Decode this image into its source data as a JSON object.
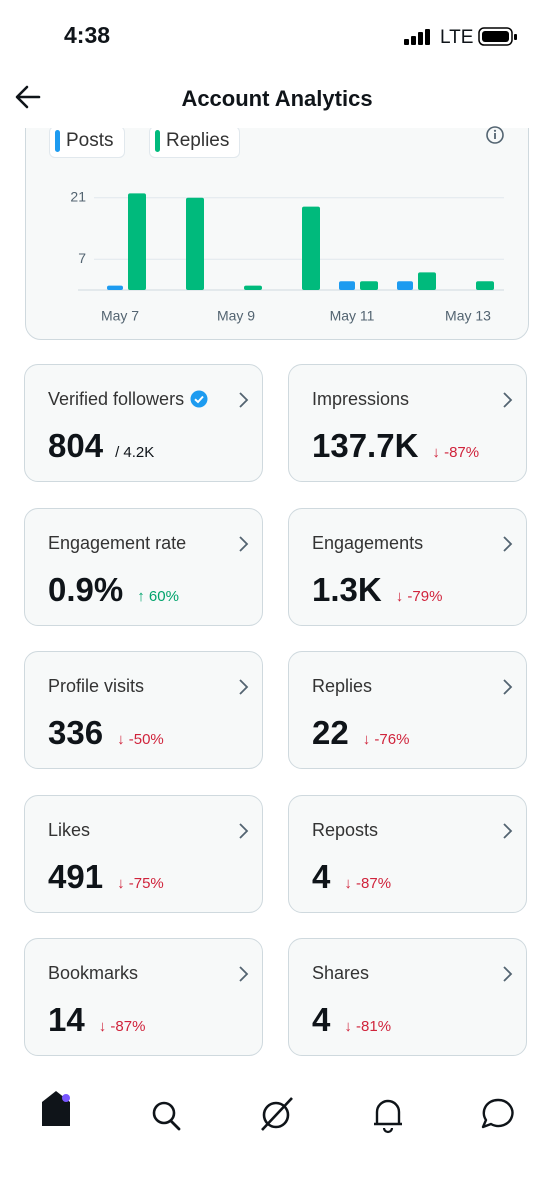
{
  "status_bar": {
    "time": "4:38",
    "network": "LTE"
  },
  "header": {
    "title": "Account Analytics"
  },
  "chart_data": {
    "type": "bar",
    "categories": [
      "May 7",
      null,
      "May 9",
      null,
      "May 11",
      null,
      "May 13"
    ],
    "series": [
      {
        "name": "Posts",
        "color": "#1d9bf0",
        "values": [
          1,
          0,
          0,
          0,
          2,
          2,
          0
        ]
      },
      {
        "name": "Replies",
        "color": "#00ba7c",
        "values": [
          22,
          21,
          1,
          19,
          2,
          4,
          2
        ]
      }
    ],
    "ylim": [
      0,
      23
    ],
    "yticks": [
      7,
      21
    ],
    "grid": true
  },
  "metrics": [
    {
      "label": "Verified followers",
      "value": "804",
      "total": "/ 4.2K",
      "verified": true
    },
    {
      "label": "Impressions",
      "value": "137.7K",
      "change": "↓ -87%",
      "trend": "down"
    },
    {
      "label": "Engagement rate",
      "value": "0.9%",
      "change": "↑ 60%",
      "trend": "up"
    },
    {
      "label": "Engagements",
      "value": "1.3K",
      "change": "↓ -79%",
      "trend": "down"
    },
    {
      "label": "Profile visits",
      "value": "336",
      "change": "↓ -50%",
      "trend": "down"
    },
    {
      "label": "Replies",
      "value": "22",
      "change": "↓ -76%",
      "trend": "down"
    },
    {
      "label": "Likes",
      "value": "491",
      "change": "↓ -75%",
      "trend": "down"
    },
    {
      "label": "Reposts",
      "value": "4",
      "change": "↓ -87%",
      "trend": "down"
    },
    {
      "label": "Bookmarks",
      "value": "14",
      "change": "↓ -87%",
      "trend": "down"
    },
    {
      "label": "Shares",
      "value": "4",
      "change": "↓ -81%",
      "trend": "down"
    }
  ]
}
